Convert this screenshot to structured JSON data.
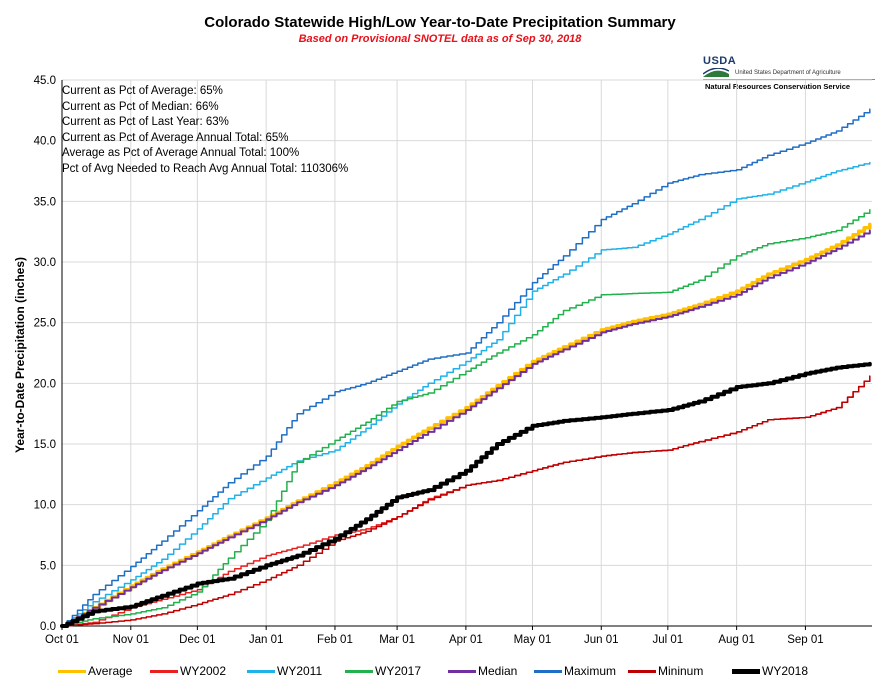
{
  "header": {
    "title": "Colorado Statewide High/Low Year-to-Date Precipitation Summary",
    "subtitle": "Based on Provisional SNOTEL data as of Sep 30, 2018"
  },
  "logo": {
    "abbr": "USDA",
    "department": "United States Department of Agriculture",
    "service": "Natural Resources Conservation Service"
  },
  "stats": [
    "Current as Pct of Average: 65%",
    "Current as Pct of Median: 66%",
    "Current as Pct of Last Year: 63%",
    "Current as Pct of Average Annual  Total: 65%",
    "Average as Pct of Average Annual Total: 100%",
    "Pct of Avg Needed to Reach Avg Annual Total: 110306%"
  ],
  "chart_data": {
    "type": "line",
    "title": "Colorado Statewide High/Low Year-to-Date Precipitation Summary",
    "subtitle": "Based on Provisional SNOTEL data as of Sep 30, 2018",
    "ylabel": "Year-to-Date Precipitation (inches)",
    "xlabel": "",
    "ylim": [
      0,
      45
    ],
    "yticks": [
      "0.0",
      "5.0",
      "10.0",
      "15.0",
      "20.0",
      "25.0",
      "30.0",
      "35.0",
      "40.0",
      "45.0"
    ],
    "x_tick_labels": [
      "Oct 01",
      "Nov 01",
      "Dec 01",
      "Jan 01",
      "Feb 01",
      "Mar 01",
      "Apr 01",
      "May 01",
      "Jun 01",
      "Jul 01",
      "Aug 01",
      "Sep 01"
    ],
    "x_tick_days": [
      0,
      31,
      61,
      92,
      123,
      151,
      182,
      212,
      243,
      273,
      304,
      335
    ],
    "x_max_day": 365,
    "grid": true,
    "legend_position": "bottom",
    "series": [
      {
        "name": "Average",
        "color": "#ffc000",
        "width": 3.5,
        "x": [
          "Oct 01",
          "Oct 15",
          "Nov 01",
          "Nov 15",
          "Dec 01",
          "Dec 15",
          "Jan 01",
          "Jan 15",
          "Feb 01",
          "Feb 15",
          "Mar 01",
          "Mar 15",
          "Apr 01",
          "Apr 15",
          "May 01",
          "May 15",
          "Jun 01",
          "Jun 15",
          "Jul 01",
          "Jul 15",
          "Aug 01",
          "Aug 15",
          "Sep 01",
          "Sep 15",
          "Sep 30"
        ],
        "y": [
          0.0,
          1.5,
          3.3,
          4.7,
          6.1,
          7.4,
          8.9,
          10.3,
          11.8,
          13.2,
          14.8,
          16.3,
          18.0,
          19.8,
          21.8,
          23.0,
          24.4,
          25.1,
          25.7,
          26.5,
          27.6,
          29.0,
          30.2,
          31.4,
          33.1
        ]
      },
      {
        "name": "WY2002",
        "color": "#e82020",
        "width": 1.5,
        "x": [
          "Oct 01",
          "Oct 15",
          "Nov 01",
          "Nov 15",
          "Dec 01",
          "Dec 15",
          "Jan 01",
          "Jan 15",
          "Feb 01",
          "Feb 15",
          "Mar 01",
          "Mar 15",
          "Apr 01",
          "Apr 15",
          "May 01",
          "May 15",
          "Jun 01",
          "Jun 15",
          "Jul 01",
          "Jul 15",
          "Aug 01",
          "Aug 15",
          "Sep 01",
          "Sep 15",
          "Sep 30"
        ],
        "y": [
          0.0,
          0.3,
          1.5,
          2.2,
          3.0,
          4.5,
          5.8,
          6.5,
          7.5,
          8.0,
          9.0,
          10.5,
          11.6,
          12.0,
          12.8,
          13.5,
          14.0,
          14.3,
          14.5,
          15.2,
          16.0,
          17.0,
          17.2,
          18.0,
          20.6
        ]
      },
      {
        "name": "WY2011",
        "color": "#1fb2ea",
        "width": 1.5,
        "x": [
          "Oct 01",
          "Oct 15",
          "Nov 01",
          "Nov 15",
          "Dec 01",
          "Dec 15",
          "Jan 01",
          "Jan 15",
          "Feb 01",
          "Feb 15",
          "Mar 01",
          "Mar 15",
          "Apr 01",
          "Apr 15",
          "May 01",
          "May 15",
          "Jun 01",
          "Jun 15",
          "Jul 01",
          "Jul 15",
          "Aug 01",
          "Aug 15",
          "Sep 01",
          "Sep 15",
          "Sep 30"
        ],
        "y": [
          0.0,
          2.0,
          3.8,
          5.5,
          8.0,
          10.5,
          12.2,
          13.6,
          14.5,
          16.3,
          18.3,
          20.0,
          21.8,
          23.6,
          27.6,
          29.0,
          31.0,
          31.2,
          32.3,
          33.5,
          35.2,
          35.6,
          36.6,
          37.5,
          38.2
        ]
      },
      {
        "name": "WY2017",
        "color": "#22b14c",
        "width": 1.5,
        "x": [
          "Oct 01",
          "Oct 15",
          "Nov 01",
          "Nov 15",
          "Dec 01",
          "Dec 15",
          "Jan 01",
          "Jan 15",
          "Feb 01",
          "Feb 15",
          "Mar 01",
          "Mar 15",
          "Apr 01",
          "Apr 15",
          "May 01",
          "May 15",
          "Jun 01",
          "Jun 15",
          "Jul 01",
          "Jul 15",
          "Aug 01",
          "Aug 15",
          "Sep 01",
          "Sep 15",
          "Sep 30"
        ],
        "y": [
          0.0,
          0.6,
          1.0,
          1.5,
          2.8,
          5.6,
          8.7,
          13.5,
          15.3,
          16.8,
          18.5,
          19.2,
          21.0,
          22.5,
          24.0,
          26.0,
          27.3,
          27.4,
          27.5,
          28.5,
          30.5,
          31.5,
          32.0,
          32.6,
          34.3
        ]
      },
      {
        "name": "Median",
        "color": "#7030a0",
        "width": 2,
        "x": [
          "Oct 01",
          "Oct 15",
          "Nov 01",
          "Nov 15",
          "Dec 01",
          "Dec 15",
          "Jan 01",
          "Jan 15",
          "Feb 01",
          "Feb 15",
          "Mar 01",
          "Mar 15",
          "Apr 01",
          "Apr 15",
          "May 01",
          "May 15",
          "Jun 01",
          "Jun 15",
          "Jul 01",
          "Jul 15",
          "Aug 01",
          "Aug 15",
          "Sep 01",
          "Sep 15",
          "Sep 30"
        ],
        "y": [
          0.0,
          1.5,
          3.2,
          4.6,
          6.0,
          7.3,
          8.8,
          10.2,
          11.6,
          13.0,
          14.5,
          16.0,
          17.8,
          19.6,
          21.6,
          22.8,
          24.2,
          24.9,
          25.5,
          26.3,
          27.3,
          28.7,
          29.9,
          31.1,
          32.6
        ]
      },
      {
        "name": "Maximum",
        "color": "#1f6fc6",
        "width": 1.5,
        "x": [
          "Oct 01",
          "Oct 15",
          "Nov 01",
          "Nov 15",
          "Dec 01",
          "Dec 15",
          "Jan 01",
          "Jan 15",
          "Feb 01",
          "Feb 15",
          "Mar 01",
          "Mar 15",
          "Apr 01",
          "Apr 15",
          "May 01",
          "May 15",
          "Jun 01",
          "Jun 15",
          "Jul 01",
          "Jul 15",
          "Aug 01",
          "Aug 15",
          "Sep 01",
          "Sep 15",
          "Sep 30"
        ],
        "y": [
          0.0,
          2.6,
          4.9,
          7.0,
          9.5,
          11.8,
          14.0,
          17.5,
          19.3,
          20.0,
          21.0,
          22.0,
          22.5,
          25.0,
          28.3,
          30.5,
          33.5,
          34.8,
          36.5,
          37.2,
          37.6,
          38.8,
          39.8,
          40.8,
          42.6
        ]
      },
      {
        "name": "Mininum",
        "color": "#c00000",
        "width": 1.5,
        "x": [
          "Oct 01",
          "Oct 15",
          "Nov 01",
          "Nov 15",
          "Dec 01",
          "Dec 15",
          "Jan 01",
          "Jan 15",
          "Feb 01",
          "Feb 15",
          "Mar 01",
          "Mar 15",
          "Apr 01",
          "Apr 15",
          "May 01",
          "May 15",
          "Jun 01",
          "Jun 15",
          "Jul 01",
          "Jul 15",
          "Aug 01",
          "Aug 15",
          "Sep 01",
          "Sep 15",
          "Sep 30"
        ],
        "y": [
          0.0,
          0.2,
          0.5,
          1.0,
          1.8,
          2.6,
          3.8,
          5.0,
          7.0,
          7.8,
          9.0,
          10.4,
          11.6,
          12.0,
          12.8,
          13.5,
          14.0,
          14.3,
          14.5,
          15.2,
          16.0,
          17.0,
          17.2,
          18.0,
          20.6
        ]
      },
      {
        "name": "WY2018",
        "color": "#000000",
        "width": 4,
        "x": [
          "Oct 01",
          "Oct 15",
          "Nov 01",
          "Nov 15",
          "Dec 01",
          "Dec 15",
          "Jan 01",
          "Jan 15",
          "Feb 01",
          "Feb 15",
          "Mar 01",
          "Mar 15",
          "Apr 01",
          "Apr 15",
          "May 01",
          "May 15",
          "Jun 01",
          "Jun 15",
          "Jul 01",
          "Jul 15",
          "Aug 01",
          "Aug 15",
          "Sep 01",
          "Sep 15",
          "Sep 30"
        ],
        "y": [
          0.0,
          1.2,
          1.6,
          2.5,
          3.5,
          3.9,
          5.0,
          5.8,
          7.2,
          8.8,
          10.6,
          11.2,
          12.8,
          15.0,
          16.5,
          16.9,
          17.2,
          17.5,
          17.8,
          18.5,
          19.7,
          20.0,
          20.8,
          21.3,
          21.6
        ]
      }
    ]
  },
  "legend": [
    {
      "label": "Average",
      "color": "#ffc000"
    },
    {
      "label": "WY2002",
      "color": "#e82020"
    },
    {
      "label": "WY2011",
      "color": "#1fb2ea"
    },
    {
      "label": "WY2017",
      "color": "#22b14c"
    },
    {
      "label": "Median",
      "color": "#7030a0"
    },
    {
      "label": "Maximum",
      "color": "#1f6fc6"
    },
    {
      "label": "Mininum",
      "color": "#c00000"
    },
    {
      "label": "WY2018",
      "color": "#000000"
    }
  ]
}
